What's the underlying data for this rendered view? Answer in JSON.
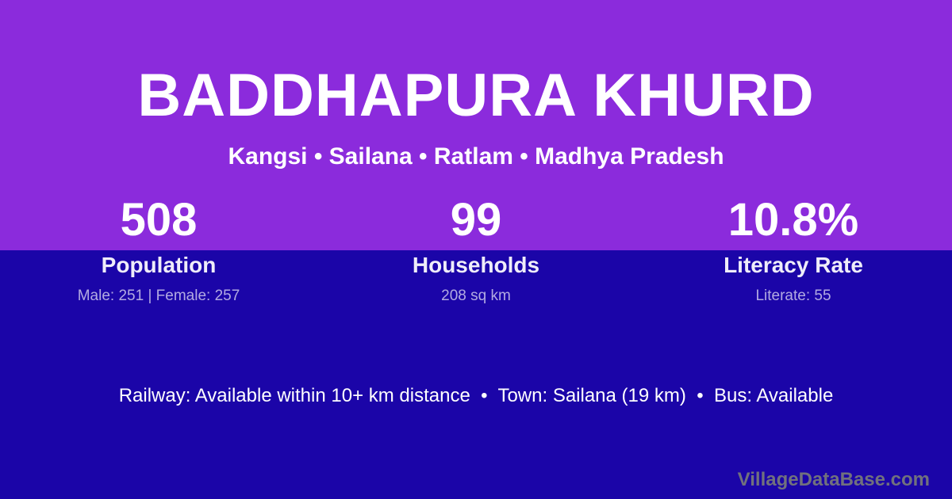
{
  "theme": {
    "purple": "#8B2BDC",
    "blue": "#1B05A8",
    "title_color": "#FFFFFF",
    "label_color": "rgba(255,255,255,0.93)",
    "sublabel_color": "rgba(255,255,255,0.66)",
    "watermark_color": "#71717D"
  },
  "header": {
    "title": "BADDHAPURA KHURD",
    "breadcrumb": "Kangsi • Sailana • Ratlam • Madhya Pradesh"
  },
  "stats": [
    {
      "value": "508",
      "label": "Population",
      "detail": "Male: 251 | Female: 257"
    },
    {
      "value": "99",
      "label": "Households",
      "detail": "208 sq km"
    },
    {
      "value": "10.8%",
      "label": "Literacy Rate",
      "detail": "Literate: 55"
    }
  ],
  "facts_line": "Railway: Available within 10+ km distance  •  Town: Sailana (19 km)  •  Bus: Available",
  "watermark": "VillageDataBase.com"
}
